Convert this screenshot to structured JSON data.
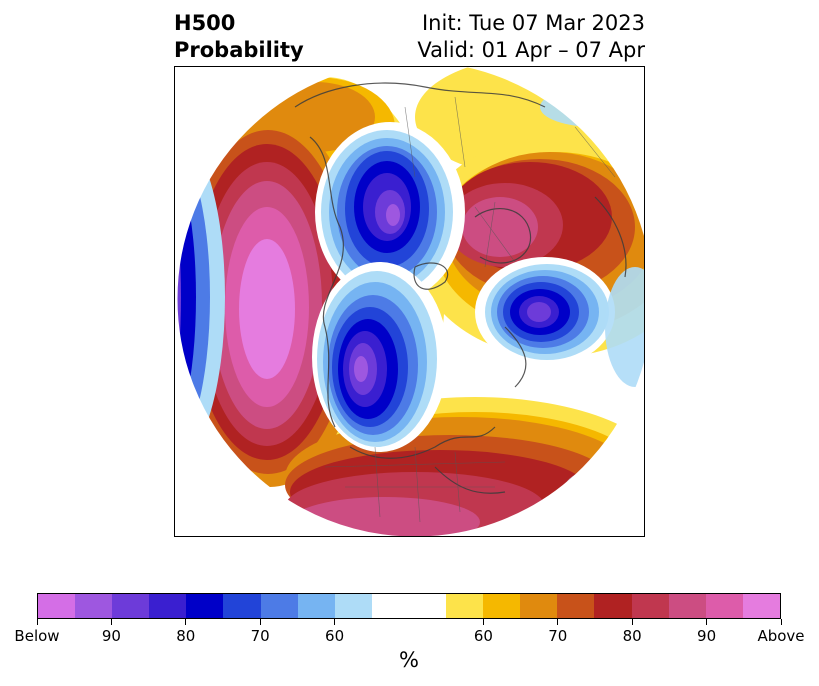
{
  "title": {
    "variable": "H500",
    "product": "Probability",
    "init": "Init: Tue 07 Mar 2023",
    "valid": "Valid: 01 Apr – 07 Apr"
  },
  "map": {
    "projection": "polar",
    "anomalies": [
      {
        "name": "west-pacific-above",
        "category": "above",
        "level": 95
      },
      {
        "name": "siberia-below",
        "category": "below",
        "level": 90
      },
      {
        "name": "canada-below",
        "category": "below",
        "level": 90
      },
      {
        "name": "scandinavia-above",
        "category": "above",
        "level": 85
      },
      {
        "name": "north-atlantic-below",
        "category": "below",
        "level": 85
      },
      {
        "name": "conus-above",
        "category": "above",
        "level": 85
      }
    ]
  },
  "colorbar": {
    "colors": [
      "#d46ee6",
      "#9e57e0",
      "#6d3bd9",
      "#3a1fd0",
      "#0000c8",
      "#2244d8",
      "#4d7be6",
      "#76b4f2",
      "#aedcf7",
      "#ffffff",
      "#ffffff",
      "#fde34a",
      "#f5b800",
      "#e08a0e",
      "#c8521a",
      "#b02222",
      "#c0374f",
      "#cc4d82",
      "#dd5caa",
      "#e57cdf"
    ],
    "ticks": [
      {
        "label": "Below",
        "index": 0
      },
      {
        "label": "90",
        "index": 2
      },
      {
        "label": "80",
        "index": 4
      },
      {
        "label": "70",
        "index": 6
      },
      {
        "label": "60",
        "index": 8
      },
      {
        "label": "60",
        "index": 12
      },
      {
        "label": "70",
        "index": 14
      },
      {
        "label": "80",
        "index": 16
      },
      {
        "label": "90",
        "index": 18
      },
      {
        "label": "Above",
        "index": 20
      }
    ],
    "unit": "%"
  }
}
